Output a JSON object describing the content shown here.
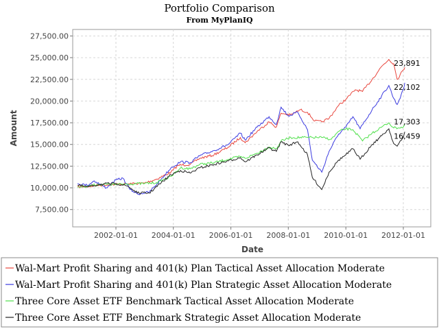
{
  "chart_data": {
    "type": "line",
    "title": "Portfolio Comparison",
    "subtitle": "From MyPlanIQ",
    "xlabel": "Date",
    "ylabel": "Amount",
    "xlim": [
      "2000-07-01",
      "2012-12-15"
    ],
    "ylim": [
      5500,
      28250
    ],
    "x_ticks": [
      "2002-01-01",
      "2004-01-01",
      "2006-01-01",
      "2008-01-01",
      "2010-01-01",
      "2012-01-01"
    ],
    "y_ticks": [
      7500,
      10000,
      12500,
      15000,
      17500,
      20000,
      22500,
      25000,
      27500
    ],
    "y_tick_labels": [
      "7,500.00",
      "10,000.00",
      "12,500.00",
      "15,000.00",
      "17,500.00",
      "20,000.00",
      "22,500.00",
      "25,000.00",
      "27,500.00"
    ],
    "grid": true,
    "legend_position": "bottom",
    "series": [
      {
        "name": "Wal-Mart Profit Sharing and 401(k) Plan Tactical Asset Allocation Moderate",
        "color": "#e8453c",
        "end_label": "23,891",
        "points": [
          [
            "2000-09-01",
            10100
          ],
          [
            "2001-01-01",
            10150
          ],
          [
            "2001-06-01",
            10300
          ],
          [
            "2002-01-01",
            10400
          ],
          [
            "2002-06-01",
            10450
          ],
          [
            "2003-01-01",
            10550
          ],
          [
            "2003-06-01",
            11000
          ],
          [
            "2003-12-01",
            11800
          ],
          [
            "2004-03-01",
            12600
          ],
          [
            "2004-08-01",
            12700
          ],
          [
            "2004-12-01",
            13400
          ],
          [
            "2005-06-01",
            13800
          ],
          [
            "2005-12-01",
            14700
          ],
          [
            "2006-05-01",
            15800
          ],
          [
            "2006-07-01",
            15200
          ],
          [
            "2006-12-01",
            16500
          ],
          [
            "2007-05-01",
            17600
          ],
          [
            "2007-08-01",
            17000
          ],
          [
            "2007-10-01",
            18600
          ],
          [
            "2008-02-01",
            18400
          ],
          [
            "2008-06-01",
            19000
          ],
          [
            "2008-09-01",
            18700
          ],
          [
            "2008-12-01",
            17700
          ],
          [
            "2009-03-01",
            17600
          ],
          [
            "2009-06-01",
            18000
          ],
          [
            "2009-10-01",
            19500
          ],
          [
            "2010-01-01",
            20200
          ],
          [
            "2010-05-01",
            21300
          ],
          [
            "2010-08-01",
            21100
          ],
          [
            "2010-12-01",
            22500
          ],
          [
            "2011-04-01",
            24000
          ],
          [
            "2011-07-01",
            24800
          ],
          [
            "2011-09-01",
            24300
          ],
          [
            "2011-10-15",
            22500
          ],
          [
            "2012-01-01",
            23600
          ],
          [
            "2012-01-20",
            23891
          ]
        ]
      },
      {
        "name": "Wal-Mart Profit Sharing and 401(k) Plan Strategic Asset Allocation Moderate",
        "color": "#3b3be0",
        "end_label": "22,102",
        "points": [
          [
            "2000-09-01",
            10500
          ],
          [
            "2001-01-01",
            10300
          ],
          [
            "2001-04-01",
            10800
          ],
          [
            "2001-09-01",
            10000
          ],
          [
            "2002-01-01",
            10900
          ],
          [
            "2002-04-01",
            11100
          ],
          [
            "2002-07-01",
            9800
          ],
          [
            "2002-10-01",
            9300
          ],
          [
            "2003-03-01",
            9500
          ],
          [
            "2003-08-01",
            11000
          ],
          [
            "2003-12-01",
            12300
          ],
          [
            "2004-04-01",
            13000
          ],
          [
            "2004-08-01",
            12900
          ],
          [
            "2004-12-01",
            13700
          ],
          [
            "2005-06-01",
            14300
          ],
          [
            "2005-12-01",
            15000
          ],
          [
            "2006-05-01",
            16300
          ],
          [
            "2006-07-01",
            15500
          ],
          [
            "2006-12-01",
            17000
          ],
          [
            "2007-05-01",
            18200
          ],
          [
            "2007-08-01",
            17300
          ],
          [
            "2007-10-01",
            19300
          ],
          [
            "2008-01-01",
            18300
          ],
          [
            "2008-05-01",
            18700
          ],
          [
            "2008-09-01",
            16700
          ],
          [
            "2008-11-01",
            13200
          ],
          [
            "2009-03-01",
            11800
          ],
          [
            "2009-06-01",
            14200
          ],
          [
            "2009-10-01",
            16200
          ],
          [
            "2010-01-01",
            17000
          ],
          [
            "2010-04-01",
            18200
          ],
          [
            "2010-07-01",
            16800
          ],
          [
            "2010-12-01",
            19000
          ],
          [
            "2011-04-01",
            20600
          ],
          [
            "2011-07-01",
            21800
          ],
          [
            "2011-09-01",
            20300
          ],
          [
            "2011-10-15",
            19600
          ],
          [
            "2012-01-01",
            21300
          ],
          [
            "2012-01-20",
            22102
          ]
        ]
      },
      {
        "name": "Three Core Asset ETF Benchmark Tactical Asset Allocation Moderate",
        "color": "#4ee04a",
        "end_label": "17,303",
        "points": [
          [
            "2000-09-01",
            10100
          ],
          [
            "2001-01-01",
            10200
          ],
          [
            "2001-06-01",
            10400
          ],
          [
            "2002-01-01",
            10400
          ],
          [
            "2002-06-01",
            10450
          ],
          [
            "2003-01-01",
            10500
          ],
          [
            "2003-06-01",
            10600
          ],
          [
            "2003-12-01",
            11300
          ],
          [
            "2004-04-01",
            12300
          ],
          [
            "2004-08-01",
            12200
          ],
          [
            "2004-12-01",
            12700
          ],
          [
            "2005-06-01",
            12900
          ],
          [
            "2005-12-01",
            13300
          ],
          [
            "2006-05-01",
            13600
          ],
          [
            "2006-07-01",
            13400
          ],
          [
            "2006-12-01",
            14000
          ],
          [
            "2007-05-01",
            14700
          ],
          [
            "2007-08-01",
            14500
          ],
          [
            "2007-10-01",
            15400
          ],
          [
            "2008-02-01",
            15800
          ],
          [
            "2008-09-01",
            15800
          ],
          [
            "2009-03-01",
            15800
          ],
          [
            "2009-07-01",
            15600
          ],
          [
            "2009-10-01",
            16500
          ],
          [
            "2010-01-01",
            16800
          ],
          [
            "2010-04-01",
            16700
          ],
          [
            "2010-08-01",
            15400
          ],
          [
            "2010-12-01",
            16300
          ],
          [
            "2011-04-01",
            17000
          ],
          [
            "2011-07-01",
            17500
          ],
          [
            "2011-09-01",
            16900
          ],
          [
            "2012-01-01",
            17000
          ],
          [
            "2012-01-20",
            17303
          ]
        ]
      },
      {
        "name": "Three Core Asset ETF Benchmark Strategic Asset Allocation Moderate",
        "color": "#222222",
        "end_label": "16,459",
        "points": [
          [
            "2000-09-01",
            10300
          ],
          [
            "2001-01-01",
            10100
          ],
          [
            "2001-06-01",
            10400
          ],
          [
            "2002-01-01",
            10500
          ],
          [
            "2002-06-01",
            10200
          ],
          [
            "2002-10-01",
            9400
          ],
          [
            "2003-03-01",
            9400
          ],
          [
            "2003-08-01",
            10600
          ],
          [
            "2003-12-01",
            11500
          ],
          [
            "2004-04-01",
            12000
          ],
          [
            "2004-08-01",
            11700
          ],
          [
            "2004-12-01",
            12300
          ],
          [
            "2005-06-01",
            12700
          ],
          [
            "2005-12-01",
            13100
          ],
          [
            "2006-05-01",
            13500
          ],
          [
            "2006-07-01",
            13000
          ],
          [
            "2006-12-01",
            13800
          ],
          [
            "2007-05-01",
            14600
          ],
          [
            "2007-08-01",
            14200
          ],
          [
            "2007-10-01",
            15300
          ],
          [
            "2008-01-01",
            14900
          ],
          [
            "2008-05-01",
            15300
          ],
          [
            "2008-09-01",
            13800
          ],
          [
            "2008-11-01",
            11200
          ],
          [
            "2009-03-01",
            9800
          ],
          [
            "2009-06-01",
            11800
          ],
          [
            "2009-10-01",
            13200
          ],
          [
            "2010-01-01",
            13800
          ],
          [
            "2010-04-01",
            14500
          ],
          [
            "2010-07-01",
            13300
          ],
          [
            "2010-12-01",
            15000
          ],
          [
            "2011-04-01",
            16000
          ],
          [
            "2011-07-01",
            16800
          ],
          [
            "2011-09-01",
            15100
          ],
          [
            "2011-10-15",
            14800
          ],
          [
            "2012-01-01",
            15800
          ],
          [
            "2012-01-20",
            16459
          ]
        ]
      }
    ]
  }
}
